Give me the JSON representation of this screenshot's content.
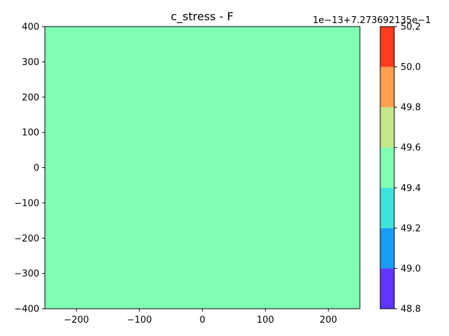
{
  "chart_data": {
    "type": "heatmap",
    "title": "c_stress - F",
    "xlabel": "",
    "ylabel": "",
    "xlim": [
      -250,
      250
    ],
    "ylim": [
      -400,
      400
    ],
    "x_ticks": [
      -200,
      -100,
      0,
      100,
      200
    ],
    "x_tick_labels": [
      "−200",
      "−100",
      "0",
      "100",
      "200"
    ],
    "y_ticks": [
      -400,
      -300,
      -200,
      -100,
      0,
      100,
      200,
      300,
      400
    ],
    "y_tick_labels": [
      "−400",
      "−300",
      "−200",
      "−100",
      "0",
      "100",
      "200",
      "300",
      "400"
    ],
    "field": {
      "level_index": 3,
      "color": "#80ffb4"
    },
    "colorbar": {
      "offset_text": "1e−13+7.273692135e−1",
      "range": [
        48.8,
        50.2
      ],
      "levels": [
        48.8,
        49.0,
        49.2,
        49.4,
        49.6,
        49.8,
        50.0,
        50.2
      ],
      "tick_labels": [
        "48.8",
        "49.0",
        "49.2",
        "49.4",
        "49.6",
        "49.8",
        "50.0",
        "50.2"
      ],
      "colors": [
        "#5f36ff",
        "#199df2",
        "#3de3db",
        "#80ffb4",
        "#c6e68a",
        "#ffa050",
        "#ff3c1e"
      ]
    },
    "grid": false,
    "legend": "none"
  }
}
